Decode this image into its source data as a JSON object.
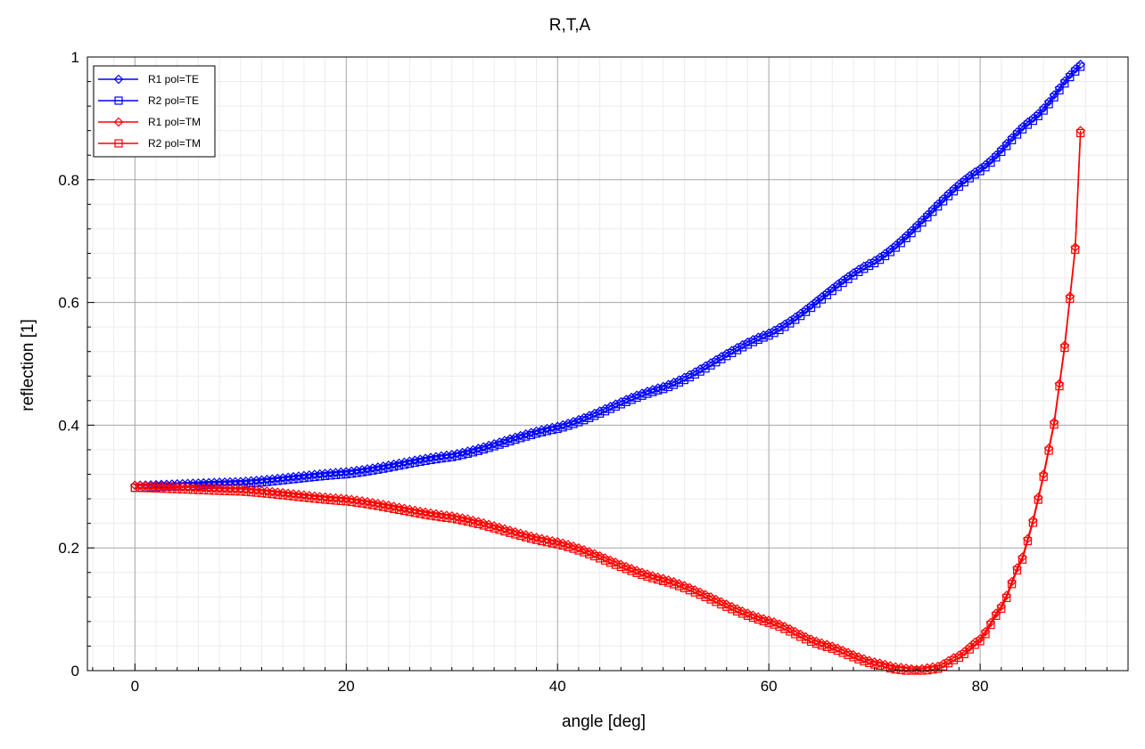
{
  "chart_data": {
    "type": "line",
    "title": "R,T,A",
    "xlabel": "angle [deg]",
    "ylabel": "reflection [1]",
    "xlim": [
      -4.5,
      94
    ],
    "ylim": [
      0,
      1
    ],
    "x_ticks": [
      0,
      20,
      40,
      60,
      80
    ],
    "y_ticks": [
      0,
      0.2,
      0.4,
      0.6,
      0.8,
      1
    ],
    "y_tick_labels": [
      "0",
      "0.2",
      "0.4",
      "0.6",
      "0.8",
      "1"
    ],
    "x_tick_labels": [
      "0",
      "20",
      "40",
      "60",
      "80"
    ],
    "grid": true,
    "minor_grid": true,
    "legend_position": "top-left",
    "x_range_data": {
      "start": 0,
      "end": 89.5,
      "step": 0.5
    },
    "series": [
      {
        "name": "R1 pol=TE",
        "color": "#0000ff",
        "marker": "diamond",
        "points": [
          [
            0,
            0.302
          ],
          [
            10,
            0.308
          ],
          [
            20,
            0.324
          ],
          [
            30,
            0.352
          ],
          [
            40,
            0.398
          ],
          [
            50,
            0.463
          ],
          [
            60,
            0.55
          ],
          [
            70,
            0.668
          ],
          [
            80,
            0.818
          ],
          [
            85,
            0.9
          ],
          [
            89.5,
            0.988
          ]
        ]
      },
      {
        "name": "R2 pol=TE",
        "color": "#0000ff",
        "marker": "square",
        "points": [
          [
            0,
            0.302
          ],
          [
            10,
            0.308
          ],
          [
            20,
            0.324
          ],
          [
            30,
            0.352
          ],
          [
            40,
            0.398
          ],
          [
            50,
            0.463
          ],
          [
            60,
            0.55
          ],
          [
            70,
            0.668
          ],
          [
            80,
            0.818
          ],
          [
            85,
            0.9
          ],
          [
            89.5,
            0.988
          ]
        ]
      },
      {
        "name": "R1 pol=TM",
        "color": "#ff0000",
        "marker": "diamond",
        "points": [
          [
            0,
            0.302
          ],
          [
            10,
            0.296
          ],
          [
            20,
            0.28
          ],
          [
            30,
            0.252
          ],
          [
            40,
            0.21
          ],
          [
            50,
            0.15
          ],
          [
            60,
            0.082
          ],
          [
            65,
            0.045
          ],
          [
            70,
            0.014
          ],
          [
            72,
            0.006
          ],
          [
            74,
            0.002
          ],
          [
            76,
            0.007
          ],
          [
            78,
            0.025
          ],
          [
            80,
            0.052
          ],
          [
            82,
            0.105
          ],
          [
            84,
            0.185
          ],
          [
            85,
            0.245
          ],
          [
            86,
            0.32
          ],
          [
            87,
            0.405
          ],
          [
            88,
            0.53
          ],
          [
            89,
            0.69
          ],
          [
            89.5,
            0.88
          ]
        ]
      },
      {
        "name": "R2 pol=TM",
        "color": "#ff0000",
        "marker": "square",
        "points": [
          [
            0,
            0.302
          ],
          [
            10,
            0.296
          ],
          [
            20,
            0.28
          ],
          [
            30,
            0.252
          ],
          [
            40,
            0.21
          ],
          [
            50,
            0.15
          ],
          [
            60,
            0.082
          ],
          [
            65,
            0.045
          ],
          [
            70,
            0.014
          ],
          [
            72,
            0.006
          ],
          [
            74,
            0.002
          ],
          [
            76,
            0.007
          ],
          [
            78,
            0.025
          ],
          [
            80,
            0.052
          ],
          [
            82,
            0.105
          ],
          [
            84,
            0.185
          ],
          [
            85,
            0.245
          ],
          [
            86,
            0.32
          ],
          [
            87,
            0.405
          ],
          [
            88,
            0.53
          ],
          [
            89,
            0.69
          ],
          [
            89.5,
            0.88
          ]
        ]
      }
    ]
  }
}
